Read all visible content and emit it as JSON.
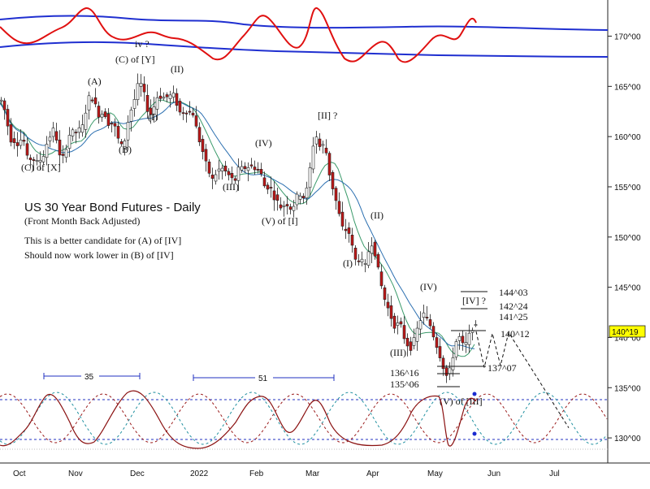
{
  "chart_data": {
    "type": "candlestick",
    "title": "US 30 Year Bond Futures - Daily",
    "subtitle": "(Front Month Back Adjusted)",
    "notes": [
      "This is a better candidate for (A) of [IV]",
      "Should now work lower in (B) of [IV]"
    ],
    "price_axis": {
      "ylim": [
        127.5,
        173.6
      ],
      "ticks": [
        "170^00",
        "165^00",
        "160^00",
        "155^00",
        "150^00",
        "145^00",
        "140^00",
        "135^00",
        "130^00"
      ],
      "current_value": "140^19",
      "current_price": 140.59
    },
    "time_axis": {
      "labels": [
        "Oct",
        "Nov",
        "Dec",
        "2022",
        "Feb",
        "Mar",
        "Apr",
        "May",
        "Jun",
        "Jul"
      ]
    },
    "price_sketch": [
      [
        0,
        163.6
      ],
      [
        6,
        162.2
      ],
      [
        10,
        160.0
      ],
      [
        14,
        159.4
      ],
      [
        18,
        159.8
      ],
      [
        22,
        158.9
      ],
      [
        26,
        160.5
      ],
      [
        30,
        158.5
      ],
      [
        34,
        157.2
      ],
      [
        38,
        158.4
      ],
      [
        42,
        157.0
      ],
      [
        46,
        157.8
      ],
      [
        50,
        157.6
      ],
      [
        54,
        158.8
      ],
      [
        58,
        159.8
      ],
      [
        62,
        160.3
      ],
      [
        66,
        161.0
      ],
      [
        70,
        158.6
      ],
      [
        74,
        157.4
      ],
      [
        78,
        158.4
      ],
      [
        82,
        159.6
      ],
      [
        86,
        160.8
      ],
      [
        90,
        160.0
      ],
      [
        94,
        160.9
      ],
      [
        98,
        160.4
      ],
      [
        102,
        161.6
      ],
      [
        106,
        163.5
      ],
      [
        110,
        164.2
      ],
      [
        114,
        163.5
      ],
      [
        118,
        162.6
      ],
      [
        122,
        161.8
      ],
      [
        126,
        162.8
      ],
      [
        130,
        161.6
      ],
      [
        134,
        161.1
      ],
      [
        138,
        161.6
      ],
      [
        142,
        160.2
      ],
      [
        146,
        159.3
      ],
      [
        150,
        158.8
      ],
      [
        154,
        160.6
      ],
      [
        158,
        162.4
      ],
      [
        162,
        163.0
      ],
      [
        166,
        164.4
      ],
      [
        170,
        165.6
      ],
      [
        174,
        164.8
      ],
      [
        178,
        163.5
      ],
      [
        182,
        162.0
      ],
      [
        186,
        162.5
      ],
      [
        190,
        163.5
      ],
      [
        194,
        164.4
      ],
      [
        198,
        163.6
      ],
      [
        202,
        164.2
      ],
      [
        206,
        163.7
      ],
      [
        210,
        164.4
      ],
      [
        214,
        163.8
      ],
      [
        218,
        162.8
      ],
      [
        222,
        162.0
      ],
      [
        226,
        162.9
      ],
      [
        230,
        162.2
      ],
      [
        234,
        162.6
      ],
      [
        238,
        162.0
      ],
      [
        242,
        159.8
      ],
      [
        246,
        159.4
      ],
      [
        250,
        157.6
      ],
      [
        254,
        157.0
      ],
      [
        258,
        155.8
      ],
      [
        262,
        155.6
      ],
      [
        266,
        157.0
      ],
      [
        270,
        156.4
      ],
      [
        274,
        157.2
      ],
      [
        278,
        155.8
      ],
      [
        282,
        156.5
      ],
      [
        286,
        155.0
      ],
      [
        290,
        156.4
      ],
      [
        294,
        157.0
      ],
      [
        298,
        156.6
      ],
      [
        302,
        157.2
      ],
      [
        306,
        156.8
      ],
      [
        310,
        157.2
      ],
      [
        314,
        156.6
      ],
      [
        318,
        156.8
      ],
      [
        322,
        155.6
      ],
      [
        326,
        154.6
      ],
      [
        330,
        155.4
      ],
      [
        334,
        154.2
      ],
      [
        338,
        153.8
      ],
      [
        342,
        153.2
      ],
      [
        346,
        152.8
      ],
      [
        350,
        153.6
      ],
      [
        354,
        153.0
      ],
      [
        358,
        152.8
      ],
      [
        362,
        153.6
      ],
      [
        366,
        154.4
      ],
      [
        370,
        154.2
      ],
      [
        374,
        153.8
      ],
      [
        378,
        155.6
      ],
      [
        382,
        158.0
      ],
      [
        386,
        160.4
      ],
      [
        390,
        159.6
      ],
      [
        394,
        158.4
      ],
      [
        398,
        159.8
      ],
      [
        402,
        157.0
      ],
      [
        406,
        155.6
      ],
      [
        410,
        154.2
      ],
      [
        414,
        153.0
      ],
      [
        418,
        151.4
      ],
      [
        422,
        150.4
      ],
      [
        426,
        151.0
      ],
      [
        430,
        149.8
      ],
      [
        434,
        148.2
      ],
      [
        438,
        147.2
      ],
      [
        442,
        148.4
      ],
      [
        446,
        146.6
      ],
      [
        450,
        147.6
      ],
      [
        454,
        149.6
      ],
      [
        458,
        149.2
      ],
      [
        462,
        147.6
      ],
      [
        466,
        145.8
      ],
      [
        470,
        144.4
      ],
      [
        474,
        143.2
      ],
      [
        478,
        142.6
      ],
      [
        482,
        141.4
      ],
      [
        486,
        141.0
      ],
      [
        490,
        141.6
      ],
      [
        494,
        140.6
      ],
      [
        498,
        139.4
      ],
      [
        502,
        139.2
      ],
      [
        506,
        138.8
      ],
      [
        510,
        140.6
      ],
      [
        514,
        141.0
      ],
      [
        518,
        142.6
      ],
      [
        522,
        142.0
      ],
      [
        526,
        141.6
      ],
      [
        530,
        140.8
      ],
      [
        534,
        139.6
      ],
      [
        538,
        138.8
      ],
      [
        542,
        137.6
      ],
      [
        546,
        136.6
      ],
      [
        550,
        135.8
      ],
      [
        554,
        137.6
      ],
      [
        558,
        138.8
      ],
      [
        562,
        140.4
      ],
      [
        566,
        139.6
      ],
      [
        570,
        138.9
      ],
      [
        574,
        139.8
      ],
      [
        578,
        140.6
      ],
      [
        582,
        141.4
      ],
      [
        586,
        140.6
      ]
    ],
    "moving_averages": [
      {
        "name": "",
        "color": "#3a9a6a",
        "shift": 10,
        "window": 9
      },
      {
        "name": "",
        "color": "#2b6fb0",
        "shift": 18,
        "window": 15
      }
    ],
    "horizontal_levels": [
      {
        "label": "144^03",
        "price": 144.09
      },
      {
        "label": "142^24",
        "price": 142.75
      },
      {
        "label": "141^25",
        "price": 141.78
      },
      {
        "label": "140^12",
        "price": 140.38
      },
      {
        "label": "137^07",
        "price": 137.22
      },
      {
        "label": "136^16",
        "price": 136.5
      },
      {
        "label": "135^06",
        "price": 135.19
      }
    ],
    "wave_labels": [
      {
        "text": "(C) of [X]"
      },
      {
        "text": "(A)"
      },
      {
        "text": "(B)"
      },
      {
        "text": "iv ?"
      },
      {
        "text": "(C) of [Y]"
      },
      {
        "text": "(II)"
      },
      {
        "text": "(I)"
      },
      {
        "text": "(III)"
      },
      {
        "text": "(IV)"
      },
      {
        "text": "(V) of [I]"
      },
      {
        "text": "[II] ?"
      },
      {
        "text": "(II)"
      },
      {
        "text": "(I)"
      },
      {
        "text": "(IV)"
      },
      {
        "text": "(III)"
      },
      {
        "text": "(V) of [III]"
      },
      {
        "text": "[IV] ?"
      }
    ],
    "cycle_spans": [
      {
        "label": "35"
      },
      {
        "label": "51"
      }
    ],
    "projection": {
      "path": [
        [
          586,
          140.6
        ],
        [
          596,
          137.0
        ],
        [
          606,
          140.4
        ],
        [
          616,
          137.2
        ],
        [
          626,
          140.5
        ],
        [
          700,
          131.0
        ]
      ]
    }
  }
}
